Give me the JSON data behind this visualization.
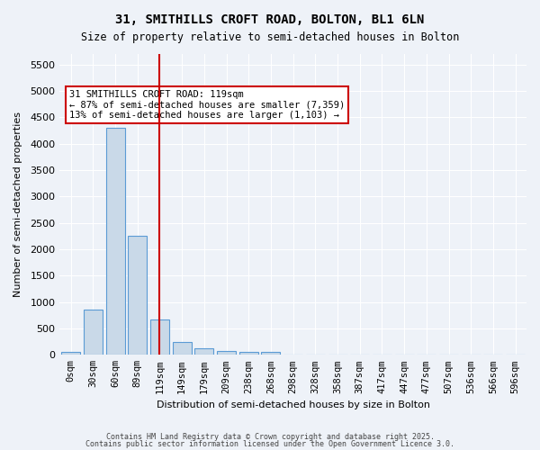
{
  "title_line1": "31, SMITHILLS CROFT ROAD, BOLTON, BL1 6LN",
  "title_line2": "Size of property relative to semi-detached houses in Bolton",
  "xlabel": "Distribution of semi-detached houses by size in Bolton",
  "ylabel": "Number of semi-detached properties",
  "bar_labels": [
    "0sqm",
    "30sqm",
    "60sqm",
    "89sqm",
    "119sqm",
    "149sqm",
    "179sqm",
    "209sqm",
    "238sqm",
    "268sqm",
    "298sqm",
    "328sqm",
    "358sqm",
    "387sqm",
    "417sqm",
    "447sqm",
    "477sqm",
    "507sqm",
    "536sqm",
    "566sqm",
    "596sqm"
  ],
  "bar_values": [
    50,
    850,
    4300,
    2250,
    670,
    250,
    120,
    70,
    55,
    55,
    0,
    0,
    0,
    0,
    0,
    0,
    0,
    0,
    0,
    0,
    0
  ],
  "bar_color": "#c9d9e8",
  "bar_edge_color": "#5b9bd5",
  "red_line_index": 4,
  "red_line_color": "#cc0000",
  "annotation_text": "31 SMITHILLS CROFT ROAD: 119sqm\n← 87% of semi-detached houses are smaller (7,359)\n13% of semi-detached houses are larger (1,103) →",
  "annotation_box_color": "#ffffff",
  "annotation_edge_color": "#cc0000",
  "ylim": [
    0,
    5700
  ],
  "yticks": [
    0,
    500,
    1000,
    1500,
    2000,
    2500,
    3000,
    3500,
    4000,
    4500,
    5000,
    5500
  ],
  "background_color": "#eef2f8",
  "grid_color": "#ffffff",
  "footer_line1": "Contains HM Land Registry data © Crown copyright and database right 2025.",
  "footer_line2": "Contains public sector information licensed under the Open Government Licence 3.0."
}
